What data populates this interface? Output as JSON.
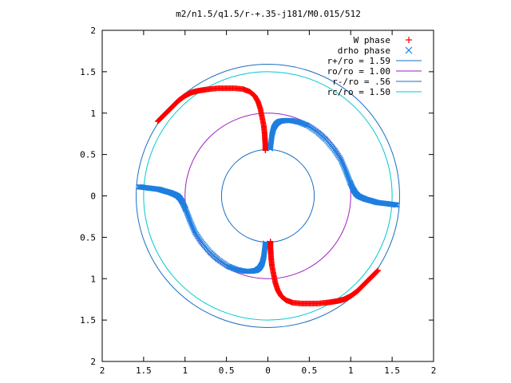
{
  "chart_data": {
    "type": "scatter",
    "title": "m2/n1.5/q1.5/r-+.35-j181/M0.015/512",
    "xlim": [
      -2,
      2
    ],
    "ylim": [
      -2,
      2
    ],
    "x_ticks": [
      {
        "v": -2,
        "label": "2"
      },
      {
        "v": -1.5,
        "label": "1.5"
      },
      {
        "v": -1,
        "label": "1"
      },
      {
        "v": -0.5,
        "label": "0.5"
      },
      {
        "v": 0,
        "label": "0"
      },
      {
        "v": 0.5,
        "label": "0.5"
      },
      {
        "v": 1,
        "label": "1"
      },
      {
        "v": 1.5,
        "label": "1.5"
      },
      {
        "v": 2,
        "label": "2"
      }
    ],
    "y_ticks": [
      {
        "v": 2,
        "label": "2"
      },
      {
        "v": 1.5,
        "label": "1.5"
      },
      {
        "v": 1,
        "label": "1"
      },
      {
        "v": 0.5,
        "label": "0.5"
      },
      {
        "v": 0,
        "label": "0"
      },
      {
        "v": -0.5,
        "label": "0.5"
      },
      {
        "v": -1,
        "label": "1"
      },
      {
        "v": -1.5,
        "label": "1.5"
      },
      {
        "v": -2,
        "label": "2"
      }
    ],
    "legend_position": "top-right",
    "grid": false,
    "circles": [
      {
        "name": "r+/ro = 1.59",
        "radius": 1.59,
        "color": "#1a6fbf"
      },
      {
        "name": "ro/ro = 1.00",
        "radius": 1.0,
        "color": "#a020c0"
      },
      {
        "name": "r-/ro = .56",
        "radius": 0.56,
        "color": "#1a6fbf"
      },
      {
        "name": "rc/ro = 1.50",
        "radius": 1.5,
        "color": "#00c8d0"
      }
    ],
    "series": [
      {
        "name": "W phase",
        "color": "#ff0000",
        "marker": "+",
        "x": [
          -1.33,
          -1.28,
          -1.24,
          -1.2,
          -1.16,
          -1.12,
          -1.08,
          -1.04,
          -1.0,
          -0.96,
          -0.92,
          -0.88,
          -0.84,
          -0.78,
          -0.7,
          -0.6,
          -0.5,
          -0.4,
          -0.3,
          -0.22,
          -0.16,
          -0.12,
          -0.09,
          -0.07,
          -0.05,
          -0.04,
          -0.035,
          -0.03,
          -0.03,
          -0.03,
          1.33,
          1.28,
          1.24,
          1.2,
          1.16,
          1.12,
          1.08,
          1.04,
          1.0,
          0.96,
          0.92,
          0.88,
          0.84,
          0.78,
          0.7,
          0.6,
          0.5,
          0.4,
          0.3,
          0.22,
          0.16,
          0.12,
          0.09,
          0.07,
          0.05,
          0.04,
          0.035,
          0.03,
          0.03,
          0.03
        ],
        "y": [
          0.9,
          0.95,
          0.99,
          1.03,
          1.07,
          1.11,
          1.15,
          1.18,
          1.21,
          1.23,
          1.25,
          1.26,
          1.27,
          1.28,
          1.29,
          1.3,
          1.3,
          1.3,
          1.29,
          1.26,
          1.21,
          1.14,
          1.05,
          0.95,
          0.85,
          0.76,
          0.68,
          0.62,
          0.58,
          0.55,
          -0.9,
          -0.95,
          -0.99,
          -1.03,
          -1.07,
          -1.11,
          -1.15,
          -1.18,
          -1.21,
          -1.23,
          -1.25,
          -1.26,
          -1.27,
          -1.28,
          -1.29,
          -1.3,
          -1.3,
          -1.3,
          -1.29,
          -1.26,
          -1.21,
          -1.14,
          -1.05,
          -0.95,
          -0.85,
          -0.76,
          -0.68,
          -0.62,
          -0.58,
          -0.55
        ]
      },
      {
        "name": "drho phase",
        "color": "#1e7fe0",
        "marker": "x",
        "x": [
          0.03,
          0.04,
          0.05,
          0.07,
          0.1,
          0.14,
          0.2,
          0.28,
          0.38,
          0.48,
          0.6,
          0.7,
          0.8,
          0.88,
          0.94,
          0.99,
          1.03,
          1.06,
          1.09,
          1.13,
          1.18,
          1.25,
          1.32,
          1.4,
          1.48,
          1.56,
          -0.03,
          -0.04,
          -0.05,
          -0.07,
          -0.1,
          -0.14,
          -0.2,
          -0.28,
          -0.38,
          -0.48,
          -0.6,
          -0.7,
          -0.8,
          -0.88,
          -0.94,
          -0.99,
          -1.03,
          -1.06,
          -1.09,
          -1.13,
          -1.18,
          -1.25,
          -1.32,
          -1.4,
          -1.48,
          -1.56
        ],
        "y": [
          0.57,
          0.66,
          0.74,
          0.82,
          0.87,
          0.9,
          0.91,
          0.91,
          0.89,
          0.85,
          0.77,
          0.68,
          0.56,
          0.44,
          0.3,
          0.17,
          0.08,
          0.03,
          0.0,
          -0.02,
          -0.04,
          -0.06,
          -0.08,
          -0.09,
          -0.1,
          -0.11,
          -0.57,
          -0.66,
          -0.74,
          -0.82,
          -0.87,
          -0.9,
          -0.91,
          -0.91,
          -0.89,
          -0.85,
          -0.77,
          -0.68,
          -0.56,
          -0.44,
          -0.3,
          -0.17,
          -0.08,
          -0.03,
          0.0,
          0.02,
          0.04,
          0.06,
          0.08,
          0.09,
          0.1,
          0.11
        ]
      }
    ]
  }
}
